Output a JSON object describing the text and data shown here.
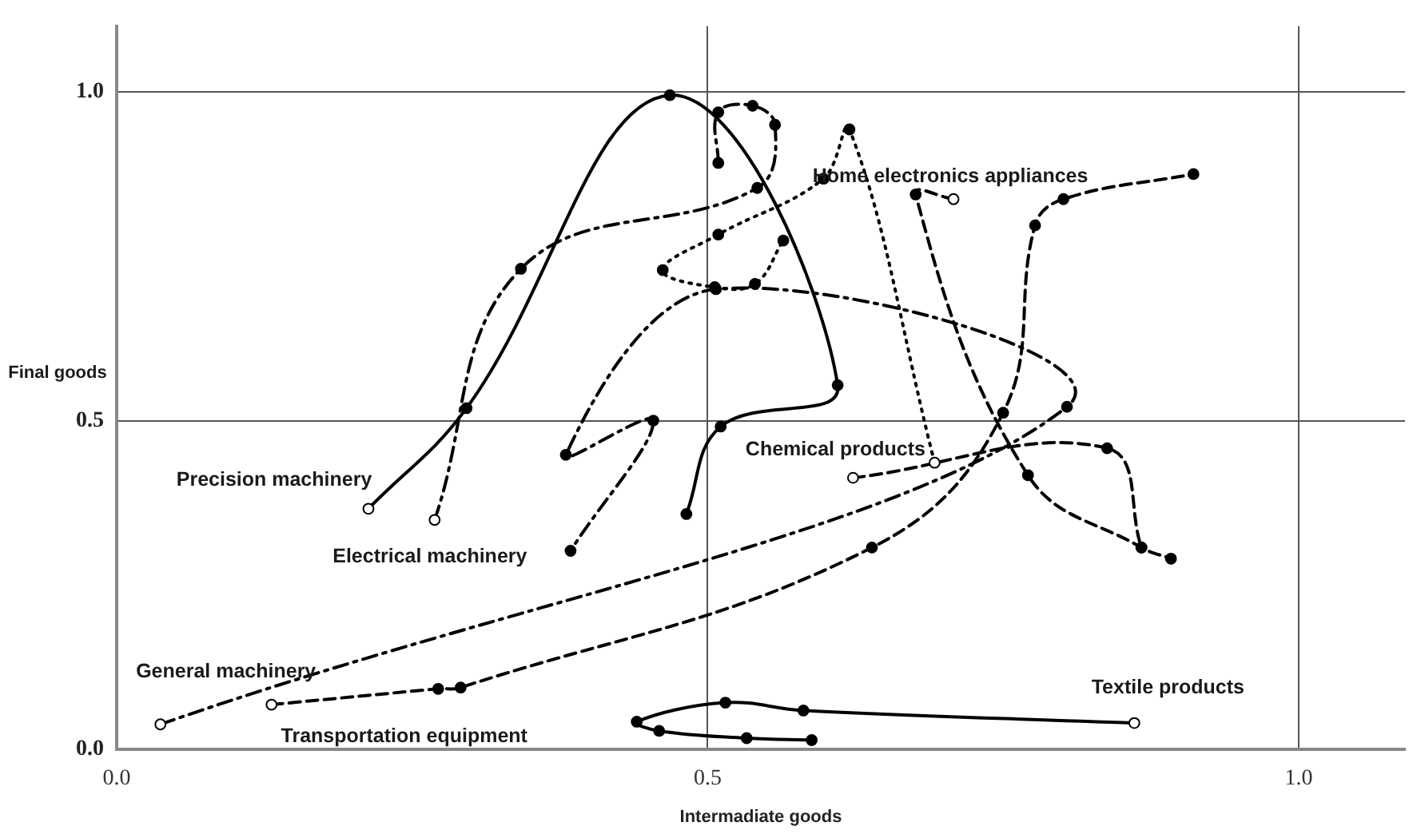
{
  "chart_data": {
    "type": "line",
    "xlabel": "Intermadiate goods",
    "ylabel": "Final goods",
    "xlim": [
      0,
      1.09
    ],
    "ylim": [
      0,
      1.1
    ],
    "xticks": [
      {
        "value": 0,
        "label": "0.0"
      },
      {
        "value": 0.5,
        "label": "0.5"
      },
      {
        "value": 1,
        "label": "1.0"
      }
    ],
    "yticks": [
      {
        "value": 0,
        "label": "0.0"
      },
      {
        "value": 0.5,
        "label": "0.5"
      },
      {
        "value": 1,
        "label": "1.0"
      }
    ],
    "grid": true,
    "legend": false,
    "marker": "circle",
    "series": [
      {
        "name": "Precision machinery",
        "color": "#000000",
        "line_style": "solid",
        "x": [
          0.213,
          0.296,
          0.468,
          0.61,
          0.511,
          0.482
        ],
        "values": [
          0.366,
          0.519,
          0.995,
          0.554,
          0.491,
          0.358
        ]
      },
      {
        "name": "Electrical machinery",
        "color": "#000000",
        "line_style": "dashdot",
        "x": [
          0.269,
          0.342,
          0.542,
          0.557,
          0.538,
          0.509,
          0.509
        ],
        "values": [
          0.349,
          0.731,
          0.854,
          0.95,
          0.979,
          0.969,
          0.892
        ]
      },
      {
        "name": "Chemical products",
        "color": "#000000",
        "line_style": "dotted",
        "x": [
          0.692,
          0.62,
          0.598,
          0.509,
          0.462,
          0.506,
          0.54,
          0.564
        ],
        "values": [
          0.436,
          0.943,
          0.868,
          0.783,
          0.729,
          0.703,
          0.708,
          0.774
        ]
      },
      {
        "name": "Home electronics appliances",
        "color": "#000000",
        "line_style": "dashed",
        "x": [
          0.708,
          0.676,
          0.771,
          0.867,
          0.892
        ],
        "values": [
          0.837,
          0.844,
          0.417,
          0.307,
          0.29
        ]
      },
      {
        "color": "#000000",
        "line_style": "dashed",
        "x": [
          0.623,
          0.838,
          0.867
        ],
        "values": [
          0.413,
          0.458,
          0.307
        ]
      },
      {
        "name": "Transportation equipment",
        "color": "#000000",
        "line_style": "dashed",
        "x": [
          0.131,
          0.272,
          0.291,
          0.639,
          0.75,
          0.777,
          0.801,
          0.911
        ],
        "values": [
          0.068,
          0.092,
          0.094,
          0.307,
          0.512,
          0.797,
          0.837,
          0.875
        ]
      },
      {
        "name": "General machinery",
        "color": "#000000",
        "line_style": "dashdot",
        "x": [
          0.037,
          0.804,
          0.507,
          0.38,
          0.454,
          0.384
        ],
        "values": [
          0.038,
          0.521,
          0.7,
          0.448,
          0.5,
          0.302
        ]
      },
      {
        "name": "Textile products",
        "color": "#000000",
        "line_style": "solid",
        "x": [
          0.861,
          0.581,
          0.515,
          0.44,
          0.459,
          0.533,
          0.588
        ],
        "values": [
          0.04,
          0.059,
          0.071,
          0.042,
          0.028,
          0.017,
          0.014
        ]
      }
    ]
  }
}
